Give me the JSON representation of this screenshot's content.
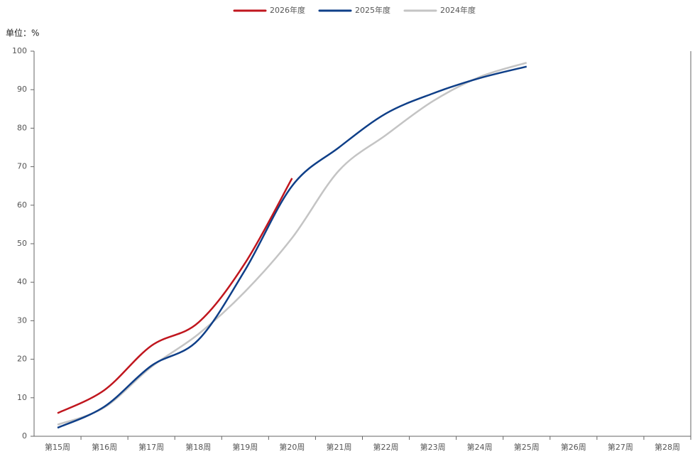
{
  "chart_data": {
    "type": "line",
    "unit_label": "单位：%",
    "categories": [
      "第15周",
      "第16周",
      "第17周",
      "第18周",
      "第19周",
      "第20周",
      "第21周",
      "第22周",
      "第23周",
      "第24周",
      "第25周",
      "第26周",
      "第27周",
      "第28周"
    ],
    "series": [
      {
        "name": "2026年度",
        "color": "#c0161e",
        "values": [
          6,
          12,
          23.5,
          29.5,
          45,
          67,
          null,
          null,
          null,
          null,
          null,
          null,
          null,
          null
        ]
      },
      {
        "name": "2025年度",
        "color": "#0f3f88",
        "values": [
          2.2,
          7.7,
          18.3,
          25,
          43.2,
          65,
          75,
          83.8,
          89,
          93,
          96,
          null,
          null,
          null
        ]
      },
      {
        "name": "2024年度",
        "color": "#c4c4c4",
        "values": [
          3,
          7.5,
          18,
          26.5,
          37.6,
          51.5,
          69,
          78.2,
          87,
          93.3,
          97,
          null,
          null,
          null
        ]
      }
    ],
    "ylim": [
      0,
      100
    ],
    "yticks": [
      0,
      10,
      20,
      30,
      40,
      50,
      60,
      70,
      80,
      90,
      100
    ],
    "legend": "top",
    "grid": false
  }
}
